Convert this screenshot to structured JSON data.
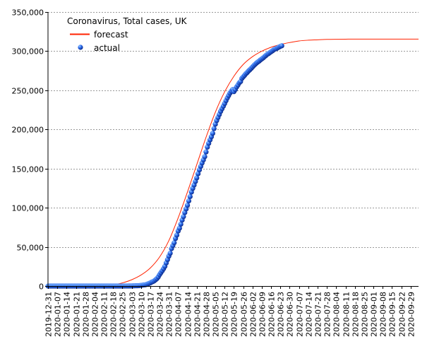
{
  "chart_data": {
    "type": "line",
    "title": "Coronavirus, Total cases, UK",
    "xlabel": "",
    "ylabel": "",
    "ylim": [
      0,
      350000
    ],
    "y_ticks": [
      0,
      50000,
      100000,
      150000,
      200000,
      250000,
      300000,
      350000
    ],
    "y_tick_labels": [
      "0",
      "50,000",
      "100,000",
      "150,000",
      "200,000",
      "250,000",
      "300,000",
      "350,000"
    ],
    "x_range": [
      "2019-12-31",
      "2020-10-05"
    ],
    "x_tick_labels": [
      "2019-12-31",
      "2020-01-07",
      "2020-01-14",
      "2020-01-21",
      "2020-01-28",
      "2020-02-04",
      "2020-02-11",
      "2020-02-18",
      "2020-02-25",
      "2020-03-03",
      "2020-03-10",
      "2020-03-17",
      "2020-03-24",
      "2020-03-31",
      "2020-04-07",
      "2020-04-14",
      "2020-04-21",
      "2020-04-28",
      "2020-05-05",
      "2020-05-12",
      "2020-05-19",
      "2020-05-26",
      "2020-06-02",
      "2020-06-09",
      "2020-06-16",
      "2020-06-23",
      "2020-06-30",
      "2020-07-07",
      "2020-07-14",
      "2020-07-21",
      "2020-07-28",
      "2020-08-04",
      "2020-08-11",
      "2020-08-18",
      "2020-08-25",
      "2020-09-01",
      "2020-09-08",
      "2020-09-15",
      "2020-09-22",
      "2020-09-29"
    ],
    "grid": "horizontal-dashed",
    "legend_position": "top-left",
    "series": [
      {
        "name": "forecast",
        "style": "line",
        "color": "#ff2200",
        "points": [
          [
            "2019-12-31",
            0
          ],
          [
            "2020-02-11",
            0
          ],
          [
            "2020-02-18",
            1500
          ],
          [
            "2020-02-25",
            4000
          ],
          [
            "2020-03-03",
            8000
          ],
          [
            "2020-03-10",
            14000
          ],
          [
            "2020-03-17",
            23000
          ],
          [
            "2020-03-24",
            37000
          ],
          [
            "2020-03-31",
            58000
          ],
          [
            "2020-04-07",
            87000
          ],
          [
            "2020-04-14",
            120000
          ],
          [
            "2020-04-21",
            155000
          ],
          [
            "2020-04-28",
            190000
          ],
          [
            "2020-05-05",
            222000
          ],
          [
            "2020-05-12",
            248000
          ],
          [
            "2020-05-19",
            268000
          ],
          [
            "2020-05-26",
            283000
          ],
          [
            "2020-06-02",
            293000
          ],
          [
            "2020-06-09",
            300000
          ],
          [
            "2020-06-16",
            305000
          ],
          [
            "2020-06-23",
            308500
          ],
          [
            "2020-06-30",
            311000
          ],
          [
            "2020-07-07",
            313000
          ],
          [
            "2020-07-14",
            314000
          ],
          [
            "2020-07-21",
            314500
          ],
          [
            "2020-07-28",
            315000
          ],
          [
            "2020-08-04",
            315200
          ],
          [
            "2020-08-11",
            315300
          ],
          [
            "2020-08-18",
            315400
          ],
          [
            "2020-08-25",
            315400
          ],
          [
            "2020-09-01",
            315400
          ],
          [
            "2020-09-08",
            315400
          ],
          [
            "2020-09-15",
            315400
          ],
          [
            "2020-09-22",
            315400
          ],
          [
            "2020-09-29",
            315400
          ],
          [
            "2020-10-05",
            315400
          ]
        ]
      },
      {
        "name": "actual",
        "style": "markers",
        "color": "#1f4fd0",
        "start_date": "2019-12-31",
        "values": [
          0,
          0,
          0,
          0,
          0,
          0,
          0,
          0,
          0,
          0,
          0,
          0,
          0,
          0,
          0,
          0,
          0,
          0,
          0,
          0,
          0,
          0,
          0,
          0,
          0,
          0,
          0,
          0,
          0,
          0,
          0,
          2,
          2,
          2,
          2,
          2,
          2,
          2,
          3,
          3,
          3,
          8,
          8,
          9,
          9,
          9,
          9,
          9,
          9,
          9,
          9,
          9,
          9,
          13,
          13,
          13,
          20,
          23,
          36,
          40,
          51,
          85,
          115,
          163,
          206,
          273,
          321,
          373,
          456,
          590,
          797,
          1061,
          1391,
          1543,
          1950,
          2626,
          3269,
          3983,
          5018,
          5683,
          6650,
          8077,
          9529,
          11658,
          14543,
          17089,
          19522,
          22141,
          25150,
          29474,
          33718,
          38168,
          41903,
          47806,
          51608,
          55242,
          60733,
          65077,
          70272,
          73758,
          78991,
          84279,
          88621,
          93873,
          98476,
          103093,
          108692,
          114217,
          120067,
          124743,
          129044,
          133495,
          138078,
          143464,
          148377,
          152840,
          157149,
          161145,
          165221,
          171253,
          177454,
          182260,
          186599,
          190584,
          194990,
          201101,
          206715,
          211364,
          215260,
          219183,
          223060,
          226463,
          229705,
          233151,
          236711,
          240161,
          243303,
          246406,
          248818,
          250908,
          248293,
          250908,
          254195,
          256717,
          259559,
          261184,
          265227,
          267240,
          269127,
          271222,
          272826,
          274762,
          276332,
          277985,
          279856,
          281661,
          283311,
          284868,
          286194,
          287399,
          288953,
          290143,
          291409,
          292950,
          294375,
          295889,
          296857,
          298136,
          299251,
          300469,
          301815,
          302879,
          303285,
          304331,
          305289,
          306210,
          306862
        ]
      }
    ]
  }
}
